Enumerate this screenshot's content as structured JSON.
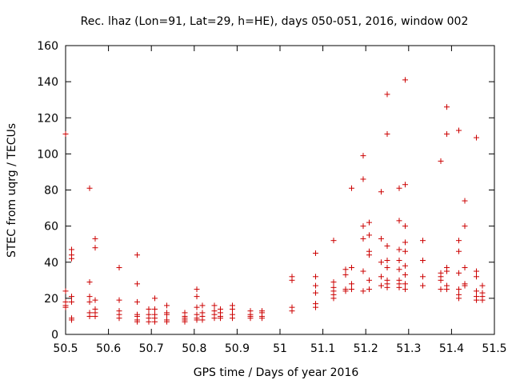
{
  "chart_data": {
    "type": "scatter",
    "title": "Rec. lhaz (Lon=91, Lat=29, h=HE), days 050-051, 2016, window 002",
    "xlabel": "GPS time / Days of year 2016",
    "ylabel": "STEC from uqrg / TECUs",
    "xlim": [
      50.5,
      51.5
    ],
    "ylim": [
      0,
      160
    ],
    "xticks": [
      50.5,
      50.6,
      50.7,
      50.8,
      50.9,
      51,
      51.1,
      51.2,
      51.3,
      51.4,
      51.5
    ],
    "xtick_labels": [
      "50.5",
      "50.6",
      "50.7",
      "50.8",
      "50.9",
      "51",
      "51.1",
      "51.2",
      "51.3",
      "51.4",
      "51.5"
    ],
    "yticks": [
      0,
      20,
      40,
      60,
      80,
      100,
      120,
      140,
      160
    ],
    "ytick_labels": [
      "0",
      "20",
      "40",
      "60",
      "80",
      "100",
      "120",
      "140",
      "160"
    ],
    "grid": false,
    "marker": "+",
    "marker_color": "#cc0000",
    "series": [
      {
        "name": "STEC",
        "points": [
          [
            50.5,
            111
          ],
          [
            50.5,
            24
          ],
          [
            50.5,
            18
          ],
          [
            50.5,
            16
          ],
          [
            50.5,
            15
          ],
          [
            50.514,
            47
          ],
          [
            50.514,
            44
          ],
          [
            50.514,
            42
          ],
          [
            50.514,
            21
          ],
          [
            50.514,
            18
          ],
          [
            50.514,
            9
          ],
          [
            50.514,
            8
          ],
          [
            50.556,
            81
          ],
          [
            50.556,
            29
          ],
          [
            50.556,
            21
          ],
          [
            50.556,
            18
          ],
          [
            50.556,
            12
          ],
          [
            50.556,
            10
          ],
          [
            50.569,
            53
          ],
          [
            50.569,
            48
          ],
          [
            50.569,
            19
          ],
          [
            50.569,
            14
          ],
          [
            50.569,
            12
          ],
          [
            50.569,
            10
          ],
          [
            50.625,
            37
          ],
          [
            50.625,
            19
          ],
          [
            50.625,
            13
          ],
          [
            50.625,
            11
          ],
          [
            50.625,
            9
          ],
          [
            50.667,
            44
          ],
          [
            50.667,
            28
          ],
          [
            50.667,
            18
          ],
          [
            50.667,
            11
          ],
          [
            50.667,
            10
          ],
          [
            50.667,
            8
          ],
          [
            50.667,
            7
          ],
          [
            50.694,
            14
          ],
          [
            50.694,
            11
          ],
          [
            50.694,
            9
          ],
          [
            50.694,
            7
          ],
          [
            50.708,
            20
          ],
          [
            50.708,
            14
          ],
          [
            50.708,
            11
          ],
          [
            50.708,
            9
          ],
          [
            50.708,
            7
          ],
          [
            50.736,
            16
          ],
          [
            50.736,
            12
          ],
          [
            50.736,
            11
          ],
          [
            50.736,
            8
          ],
          [
            50.736,
            7
          ],
          [
            50.778,
            12
          ],
          [
            50.778,
            10
          ],
          [
            50.778,
            9
          ],
          [
            50.778,
            8
          ],
          [
            50.778,
            7
          ],
          [
            50.806,
            25
          ],
          [
            50.806,
            21
          ],
          [
            50.806,
            15
          ],
          [
            50.806,
            11
          ],
          [
            50.806,
            9
          ],
          [
            50.806,
            8
          ],
          [
            50.819,
            16
          ],
          [
            50.819,
            12
          ],
          [
            50.819,
            10
          ],
          [
            50.819,
            8
          ],
          [
            50.847,
            16
          ],
          [
            50.847,
            13
          ],
          [
            50.847,
            11
          ],
          [
            50.847,
            9
          ],
          [
            50.861,
            14
          ],
          [
            50.861,
            12
          ],
          [
            50.861,
            10
          ],
          [
            50.861,
            9
          ],
          [
            50.889,
            16
          ],
          [
            50.889,
            14
          ],
          [
            50.889,
            11
          ],
          [
            50.889,
            9
          ],
          [
            50.931,
            13
          ],
          [
            50.931,
            11
          ],
          [
            50.931,
            10
          ],
          [
            50.931,
            9
          ],
          [
            50.958,
            13
          ],
          [
            50.958,
            12
          ],
          [
            50.958,
            10
          ],
          [
            50.958,
            9
          ],
          [
            51.028,
            32
          ],
          [
            51.028,
            30
          ],
          [
            51.028,
            15
          ],
          [
            51.028,
            13
          ],
          [
            51.083,
            45
          ],
          [
            51.083,
            32
          ],
          [
            51.083,
            27
          ],
          [
            51.083,
            23
          ],
          [
            51.083,
            17
          ],
          [
            51.083,
            15
          ],
          [
            51.125,
            52
          ],
          [
            51.125,
            29
          ],
          [
            51.125,
            26
          ],
          [
            51.125,
            24
          ],
          [
            51.125,
            22
          ],
          [
            51.125,
            20
          ],
          [
            51.153,
            36
          ],
          [
            51.153,
            33
          ],
          [
            51.153,
            25
          ],
          [
            51.153,
            24
          ],
          [
            51.167,
            81
          ],
          [
            51.167,
            37
          ],
          [
            51.167,
            28
          ],
          [
            51.167,
            25
          ],
          [
            51.194,
            99
          ],
          [
            51.194,
            86
          ],
          [
            51.194,
            60
          ],
          [
            51.194,
            53
          ],
          [
            51.194,
            35
          ],
          [
            51.194,
            24
          ],
          [
            51.208,
            62
          ],
          [
            51.208,
            55
          ],
          [
            51.208,
            46
          ],
          [
            51.208,
            44
          ],
          [
            51.208,
            30
          ],
          [
            51.208,
            25
          ],
          [
            51.236,
            79
          ],
          [
            51.236,
            53
          ],
          [
            51.236,
            40
          ],
          [
            51.236,
            32
          ],
          [
            51.236,
            27
          ],
          [
            51.25,
            133
          ],
          [
            51.25,
            111
          ],
          [
            51.25,
            49
          ],
          [
            51.25,
            41
          ],
          [
            51.25,
            37
          ],
          [
            51.25,
            30
          ],
          [
            51.25,
            28
          ],
          [
            51.25,
            26
          ],
          [
            51.278,
            81
          ],
          [
            51.278,
            63
          ],
          [
            51.278,
            47
          ],
          [
            51.278,
            41
          ],
          [
            51.278,
            36
          ],
          [
            51.278,
            30
          ],
          [
            51.278,
            28
          ],
          [
            51.278,
            26
          ],
          [
            51.292,
            141
          ],
          [
            51.292,
            83
          ],
          [
            51.292,
            60
          ],
          [
            51.292,
            51
          ],
          [
            51.292,
            46
          ],
          [
            51.292,
            38
          ],
          [
            51.292,
            33
          ],
          [
            51.292,
            28
          ],
          [
            51.292,
            25
          ],
          [
            51.333,
            52
          ],
          [
            51.333,
            41
          ],
          [
            51.333,
            32
          ],
          [
            51.333,
            27
          ],
          [
            51.375,
            96
          ],
          [
            51.375,
            34
          ],
          [
            51.375,
            32
          ],
          [
            51.375,
            30
          ],
          [
            51.375,
            25
          ],
          [
            51.389,
            126
          ],
          [
            51.389,
            111
          ],
          [
            51.389,
            37
          ],
          [
            51.389,
            35
          ],
          [
            51.389,
            27
          ],
          [
            51.389,
            25
          ],
          [
            51.417,
            113
          ],
          [
            51.417,
            52
          ],
          [
            51.417,
            46
          ],
          [
            51.417,
            34
          ],
          [
            51.417,
            25
          ],
          [
            51.417,
            22
          ],
          [
            51.417,
            20
          ],
          [
            51.431,
            74
          ],
          [
            51.431,
            60
          ],
          [
            51.431,
            37
          ],
          [
            51.431,
            28
          ],
          [
            51.431,
            27
          ],
          [
            51.458,
            109
          ],
          [
            51.458,
            35
          ],
          [
            51.458,
            32
          ],
          [
            51.458,
            24
          ],
          [
            51.458,
            21
          ],
          [
            51.458,
            19
          ],
          [
            51.472,
            27
          ],
          [
            51.472,
            23
          ],
          [
            51.472,
            21
          ],
          [
            51.472,
            19
          ]
        ]
      }
    ]
  }
}
